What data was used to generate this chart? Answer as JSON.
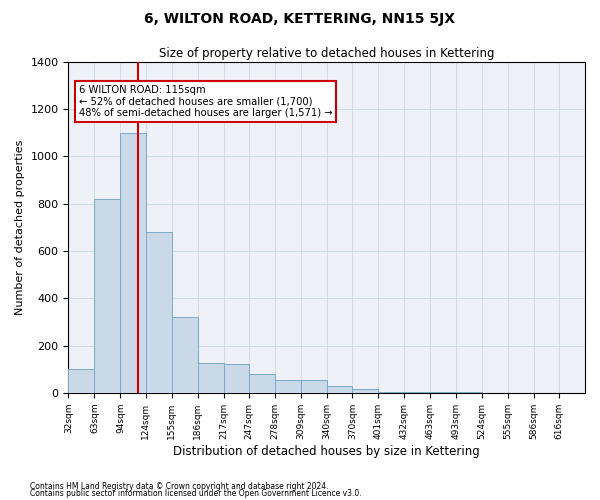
{
  "title": "6, WILTON ROAD, KETTERING, NN15 5JX",
  "subtitle": "Size of property relative to detached houses in Kettering",
  "xlabel": "Distribution of detached houses by size in Kettering",
  "ylabel": "Number of detached properties",
  "footnote1": "Contains HM Land Registry data © Crown copyright and database right 2024.",
  "footnote2": "Contains public sector information licensed under the Open Government Licence v3.0.",
  "annotation_line1": "6 WILTON ROAD: 115sqm",
  "annotation_line2": "← 52% of detached houses are smaller (1,700)",
  "annotation_line3": "48% of semi-detached houses are larger (1,571) →",
  "property_size": 115,
  "bin_edges": [
    32,
    63,
    94,
    124,
    155,
    186,
    217,
    247,
    278,
    309,
    340,
    370,
    401,
    432,
    463,
    493,
    524,
    555,
    586,
    616,
    647
  ],
  "bin_counts": [
    100,
    820,
    1100,
    680,
    320,
    125,
    120,
    80,
    55,
    55,
    30,
    15,
    5,
    2,
    2,
    2,
    1,
    0,
    0,
    0
  ],
  "bar_color": "#c9d9e8",
  "bar_edge_color": "#7aaac8",
  "red_line_color": "#cc0000",
  "annotation_box_color": "#cc0000",
  "grid_color": "#d0dce8",
  "background_color": "#eef2f8",
  "ylim": [
    0,
    1400
  ],
  "xlim_left": 32,
  "xlim_right": 647
}
